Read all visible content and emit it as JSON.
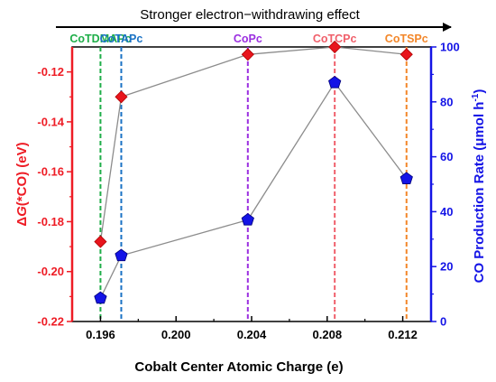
{
  "chart_data": {
    "type": "scatter",
    "banner": {
      "text": "Stronger electron−withdrawing effect"
    },
    "x_axis": {
      "label": "Cobalt Center Atomic Charge (e)",
      "range": [
        0.1945,
        0.2135
      ],
      "ticks": [
        0.196,
        0.2,
        0.204,
        0.208,
        0.212
      ],
      "tick_labels": [
        "0.196",
        "0.200",
        "0.204",
        "0.208",
        "0.212"
      ]
    },
    "y_left": {
      "label_prefix": "Δ",
      "label_italic": "G",
      "label_suffix": "(*CO) (eV)",
      "range": [
        -0.22,
        -0.11
      ],
      "ticks": [
        -0.22,
        -0.2,
        -0.18,
        -0.16,
        -0.14,
        -0.12
      ],
      "tick_labels": [
        "-0.22",
        "-0.20",
        "-0.18",
        "-0.16",
        "-0.14",
        "-0.12"
      ],
      "color": "#ee1c25"
    },
    "y_right": {
      "label_main": "CO Production Rate (μmol h",
      "label_sup": "-1",
      "label_end": ")",
      "range": [
        0,
        100
      ],
      "ticks": [
        0,
        20,
        40,
        60,
        80,
        100
      ],
      "tick_labels": [
        "0",
        "20",
        "40",
        "60",
        "80",
        "100"
      ],
      "color": "#1414e6"
    },
    "categories": [
      {
        "name": "CoTDMAPc",
        "x": 0.196,
        "color": "#1fae49"
      },
      {
        "name": "CoTAPc",
        "x": 0.1971,
        "color": "#1a72c4"
      },
      {
        "name": "CoPc",
        "x": 0.2038,
        "color": "#9b2fe0"
      },
      {
        "name": "CoTCPc",
        "x": 0.2084,
        "color": "#f0606b"
      },
      {
        "name": "CoTSPc",
        "x": 0.2122,
        "color": "#f3872a"
      }
    ],
    "series": [
      {
        "axis": "left",
        "marker": "diamond",
        "color": "#e8151d",
        "x": [
          0.196,
          0.1971,
          0.2038,
          0.2084,
          0.2122
        ],
        "values": [
          -0.188,
          -0.13,
          -0.113,
          -0.11,
          -0.113
        ]
      },
      {
        "axis": "right",
        "marker": "pentagon",
        "color": "#1414e6",
        "x": [
          0.196,
          0.1971,
          0.2038,
          0.2084,
          0.2122
        ],
        "values": [
          8.5,
          24,
          37,
          87,
          52
        ]
      }
    ],
    "line_color": "#8c8c8c"
  }
}
